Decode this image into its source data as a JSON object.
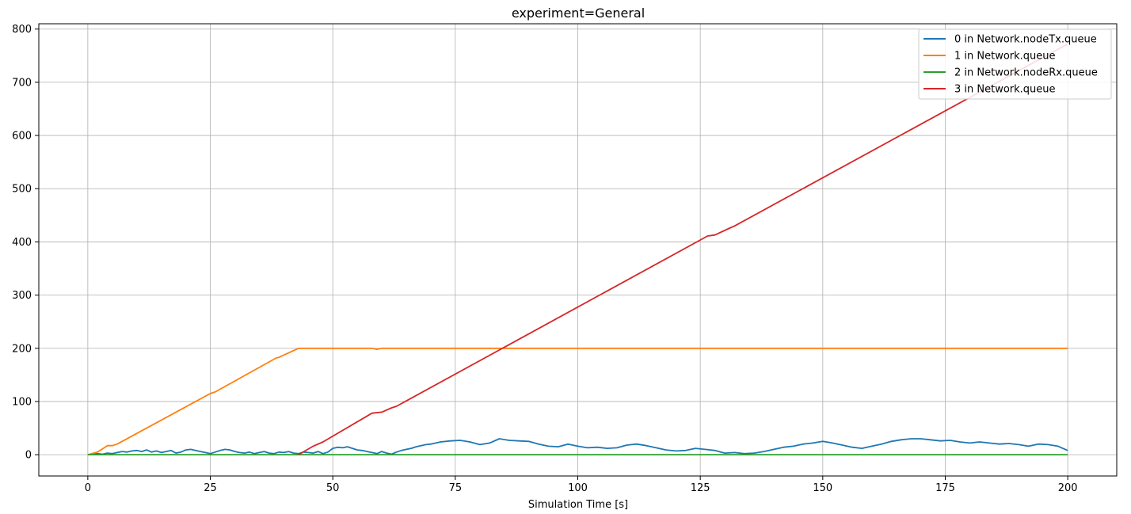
{
  "chart_data": {
    "type": "line",
    "title": "experiment=General",
    "xlabel": "Simulation Time [s]",
    "ylabel": "",
    "xlim": [
      -10,
      210
    ],
    "ylim": [
      -40,
      810
    ],
    "xticks": [
      0,
      25,
      50,
      75,
      100,
      125,
      150,
      175,
      200
    ],
    "yticks": [
      0,
      100,
      200,
      300,
      400,
      500,
      600,
      700,
      800
    ],
    "grid": true,
    "legend_position": "top-right",
    "series": [
      {
        "name": "0 in Network.nodeTx.queue",
        "color": "#1f77b4",
        "x": [
          0,
          1,
          2,
          3,
          4,
          5,
          6,
          7,
          8,
          9,
          10,
          11,
          12,
          13,
          14,
          15,
          16,
          17,
          18,
          19,
          20,
          21,
          22,
          23,
          24,
          25,
          26,
          27,
          28,
          29,
          30,
          31,
          32,
          33,
          34,
          35,
          36,
          37,
          38,
          39,
          40,
          41,
          42,
          43,
          44,
          45,
          46,
          47,
          48,
          49,
          50,
          51,
          52,
          53,
          54,
          55,
          56,
          57,
          58,
          59,
          60,
          61,
          62,
          63,
          64,
          65,
          66,
          67,
          68,
          69,
          70,
          72,
          74,
          76,
          78,
          80,
          82,
          84,
          86,
          88,
          90,
          92,
          94,
          96,
          98,
          100,
          102,
          104,
          106,
          108,
          110,
          112,
          114,
          116,
          118,
          120,
          122,
          124,
          126,
          128,
          130,
          132,
          134,
          136,
          138,
          140,
          142,
          144,
          146,
          148,
          150,
          152,
          154,
          156,
          158,
          160,
          162,
          164,
          166,
          168,
          170,
          172,
          174,
          176,
          178,
          180,
          182,
          184,
          186,
          188,
          190,
          192,
          194,
          196,
          198,
          200
        ],
        "y": [
          0,
          1,
          2,
          1,
          3,
          2,
          4,
          6,
          5,
          7,
          8,
          6,
          9,
          5,
          7,
          4,
          6,
          8,
          3,
          5,
          9,
          10,
          8,
          6,
          4,
          2,
          5,
          8,
          10,
          9,
          6,
          4,
          3,
          5,
          2,
          4,
          6,
          3,
          2,
          5,
          4,
          6,
          3,
          2,
          5,
          4,
          3,
          6,
          2,
          5,
          12,
          14,
          13,
          15,
          12,
          9,
          8,
          6,
          4,
          2,
          6,
          3,
          1,
          5,
          8,
          10,
          12,
          15,
          17,
          19,
          20,
          24,
          26,
          27,
          24,
          19,
          22,
          30,
          27,
          26,
          25,
          20,
          16,
          15,
          20,
          16,
          13,
          14,
          12,
          13,
          18,
          20,
          17,
          13,
          9,
          7,
          8,
          12,
          10,
          8,
          3,
          4,
          2,
          3,
          6,
          10,
          14,
          16,
          20,
          22,
          25,
          22,
          18,
          14,
          12,
          16,
          20,
          25,
          28,
          30,
          30,
          28,
          26,
          27,
          24,
          22,
          24,
          22,
          20,
          21,
          19,
          16,
          20,
          19,
          16,
          8
        ]
      },
      {
        "name": "1 in Network.queue",
        "color": "#ff7f0e",
        "x": [
          0,
          2,
          4,
          5,
          6,
          25,
          26,
          38.5,
          39,
          43,
          58,
          59,
          60,
          200
        ],
        "y": [
          0,
          5,
          17,
          17,
          20,
          115,
          118,
          182,
          183,
          200,
          200,
          198,
          200,
          200
        ]
      },
      {
        "name": "2 in Network.nodeRx.queue",
        "color": "#2ca02c",
        "x": [
          0,
          200
        ],
        "y": [
          0,
          0
        ]
      },
      {
        "name": "3 in Network.queue",
        "color": "#d62728",
        "x": [
          43,
          46,
          48,
          58,
          60,
          62,
          63,
          126.5,
          128,
          131,
          132,
          200
        ],
        "y": [
          0,
          16,
          24,
          78,
          80,
          88,
          91,
          411,
          413,
          426,
          430,
          772
        ]
      }
    ]
  }
}
